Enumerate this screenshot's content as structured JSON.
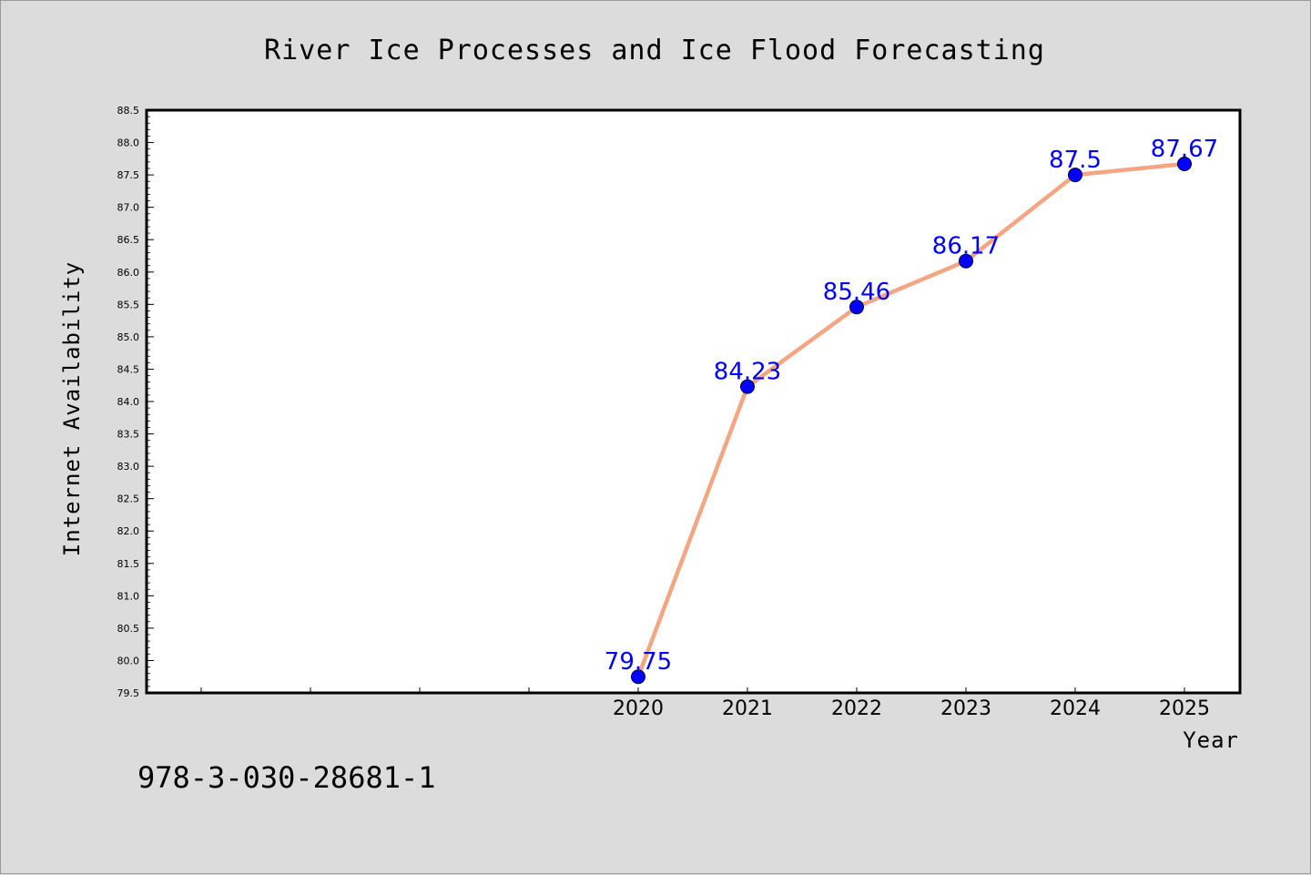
{
  "chart_data": {
    "type": "line",
    "title": "River Ice Processes and Ice Flood Forecasting",
    "xlabel": "Year",
    "ylabel": "Internet Availability",
    "x": [
      "2020",
      "2021",
      "2022",
      "2023",
      "2024",
      "2025"
    ],
    "values": [
      79.75,
      84.23,
      85.46,
      86.17,
      87.5,
      87.67
    ],
    "data_labels": [
      "79.75",
      "84.23",
      "85.46",
      "86.17",
      "87.5",
      "87.67"
    ],
    "ylim": [
      79.5,
      88.5
    ],
    "yticks": [
      "79.5",
      "80.0",
      "80.5",
      "81.0",
      "81.5",
      "82.0",
      "82.5",
      "83.0",
      "83.5",
      "84.0",
      "84.5",
      "85.0",
      "85.5",
      "86.0",
      "86.5",
      "87.0",
      "87.5",
      "88.0",
      "88.5"
    ],
    "x_slots_before_data": 4,
    "legend": "none",
    "grid": false,
    "colors": {
      "line": "#f4a582",
      "marker": "#0000ff",
      "label": "#0000ff",
      "plot_bg": "#ffffff",
      "page_bg": "#dcdcdc"
    }
  },
  "footer": {
    "isbn": "978-3-030-28681-1"
  }
}
